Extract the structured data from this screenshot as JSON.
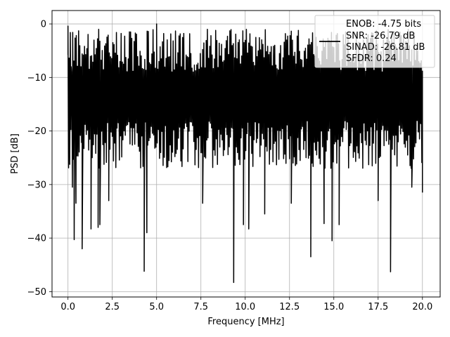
{
  "chart_data": {
    "type": "line",
    "title": "",
    "xlabel": "Frequency [MHz]",
    "ylabel": "PSD [dB]",
    "xlim": [
      -0.9,
      21.0
    ],
    "ylim": [
      -51.0,
      2.5
    ],
    "xticks": [
      0.0,
      2.5,
      5.0,
      7.5,
      10.0,
      12.5,
      15.0,
      17.5,
      20.0
    ],
    "xtick_labels": [
      "0.0",
      "2.5",
      "5.0",
      "7.5",
      "10.0",
      "12.5",
      "15.0",
      "17.5",
      "20.0"
    ],
    "yticks": [
      0,
      -10,
      -20,
      -30,
      -40,
      -50
    ],
    "ytick_labels": [
      "0",
      "−10",
      "−20",
      "−30",
      "−40",
      "−50"
    ],
    "grid": true,
    "legend_position": "top-right",
    "legend": {
      "entries": [
        "ENOB: -4.75 bits",
        "SNR: -26.79 dB",
        "SINAD: -26.81 dB",
        "SFDR: 0.24"
      ]
    },
    "series": [
      {
        "color": "#000000",
        "x_range": [
          0.0,
          20.0
        ],
        "num_points": 600,
        "points": [
          [
            0.0,
            -0.4
          ],
          [
            0.05,
            -12
          ],
          [
            0.1,
            -24.5
          ],
          [
            0.18,
            -8
          ],
          [
            0.25,
            -30.5
          ],
          [
            0.35,
            -40.3
          ],
          [
            0.45,
            -33.5
          ],
          [
            0.8,
            -42
          ],
          [
            1.3,
            -38.3
          ],
          [
            1.7,
            -38
          ],
          [
            1.8,
            -37.5
          ],
          [
            2.3,
            -33
          ],
          [
            4.3,
            -46.2
          ],
          [
            4.45,
            -39
          ],
          [
            5.0,
            0.0
          ],
          [
            7.6,
            -33.5
          ],
          [
            9.35,
            -48.3
          ],
          [
            9.9,
            -37.5
          ],
          [
            10.2,
            -38.3
          ],
          [
            11.1,
            -35.5
          ],
          [
            12.6,
            -33.5
          ],
          [
            13.7,
            -43.5
          ],
          [
            14.45,
            -37.3
          ],
          [
            14.9,
            -40.5
          ],
          [
            15.3,
            -37.5
          ],
          [
            17.5,
            -33
          ],
          [
            18.2,
            -46.3
          ],
          [
            19.4,
            -30.5
          ],
          [
            20.0,
            -31.5
          ]
        ]
      }
    ]
  }
}
